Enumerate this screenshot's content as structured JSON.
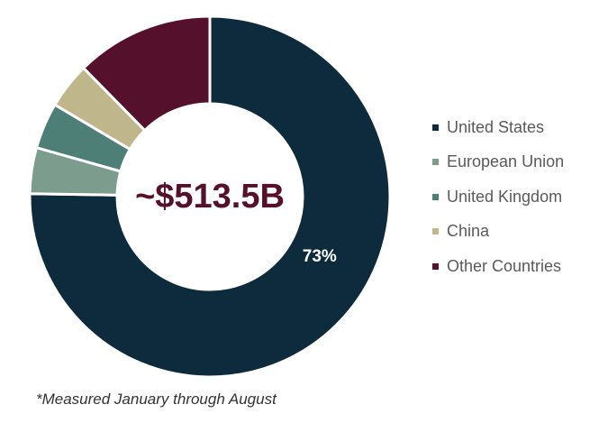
{
  "chart_data": {
    "type": "pie",
    "variant": "donut",
    "center_label": "~$513.5B",
    "categories": [
      "United States",
      "European Union",
      "United Kingdom",
      "China",
      "Other Countries"
    ],
    "values": [
      73,
      4,
      4,
      4,
      12
    ],
    "unit": "%",
    "data_labels": [
      {
        "category": "United States",
        "text": "73%"
      }
    ],
    "colors": [
      "#0e2a3d",
      "#7c9d8e",
      "#4d7f77",
      "#c0b68b",
      "#55102b"
    ],
    "center_label_color": "#55102b",
    "data_label_color": "#ffffff",
    "legend_position": "right",
    "start_angle_degrees": 0,
    "direction": "clockwise"
  },
  "footnote": "*Measured January through August"
}
